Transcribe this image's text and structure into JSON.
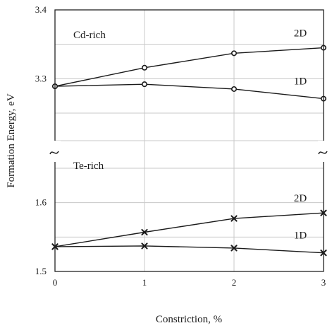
{
  "chart_data": {
    "type": "line",
    "broken_y_axis": true,
    "xlabel": "Constriction, %",
    "ylabel": "Formation Energy, eV",
    "x": [
      0,
      1,
      2,
      3
    ],
    "x_ticks": [
      "0",
      "1",
      "2",
      "3"
    ],
    "grid": true,
    "panels": [
      {
        "name": "Cd-rich",
        "ylim": [
          3.21,
          3.4
        ],
        "y_ticks": [
          {
            "value": 3.4,
            "label": "3.4"
          },
          {
            "value": 3.3,
            "label": "3.3"
          }
        ],
        "series": [
          {
            "name": "2D",
            "marker": "circle",
            "values": [
              3.289,
              3.316,
              3.337,
              3.345
            ]
          },
          {
            "name": "1D",
            "marker": "circle",
            "values": [
              3.289,
              3.292,
              3.285,
              3.271
            ]
          }
        ]
      },
      {
        "name": "Te-rich",
        "ylim": [
          1.5,
          1.69
        ],
        "y_ticks": [
          {
            "value": 1.6,
            "label": "1.6"
          },
          {
            "value": 1.5,
            "label": "1.5"
          }
        ],
        "series": [
          {
            "name": "2D",
            "marker": "x",
            "values": [
              1.536,
              1.557,
              1.577,
              1.585
            ]
          },
          {
            "name": "1D",
            "marker": "x",
            "values": [
              1.536,
              1.537,
              1.534,
              1.527
            ]
          }
        ]
      }
    ]
  }
}
